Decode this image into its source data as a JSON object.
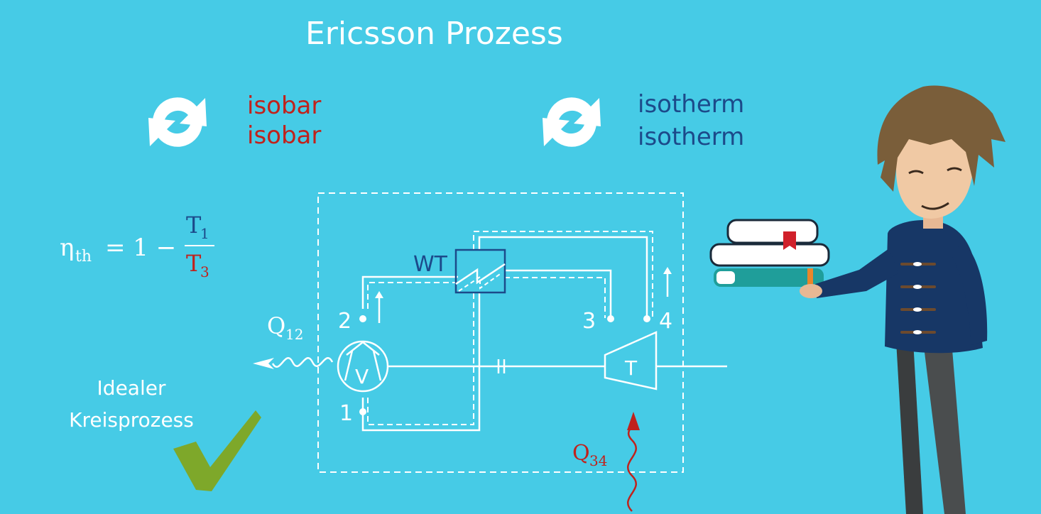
{
  "title": "Ericsson Prozess",
  "cycle_left": {
    "line1": "isobar",
    "line2": "isobar",
    "color": "#c0221c"
  },
  "cycle_right": {
    "line1": "isotherm",
    "line2": "isotherm",
    "color": "#1c4a8a"
  },
  "formula": {
    "eta": "η",
    "eta_sub": "th",
    "equals_one_minus": "= 1 −",
    "num": "T",
    "num_sub": "1",
    "den": "T",
    "den_sub": "3"
  },
  "ideal": {
    "line1": "Idealer",
    "line2": "Kreisprozess"
  },
  "diagram": {
    "wt": "WT",
    "compressor": "V",
    "turbine": "T",
    "p1": "1",
    "p2": "2",
    "p3": "3",
    "p4": "4",
    "q12": "Q",
    "q12_sub": "12",
    "q34": "Q",
    "q34_sub": "34"
  },
  "colors": {
    "background": "#46cbe6",
    "red": "#c0221c",
    "blue": "#1c4a8a",
    "check": "#7ea82a"
  }
}
